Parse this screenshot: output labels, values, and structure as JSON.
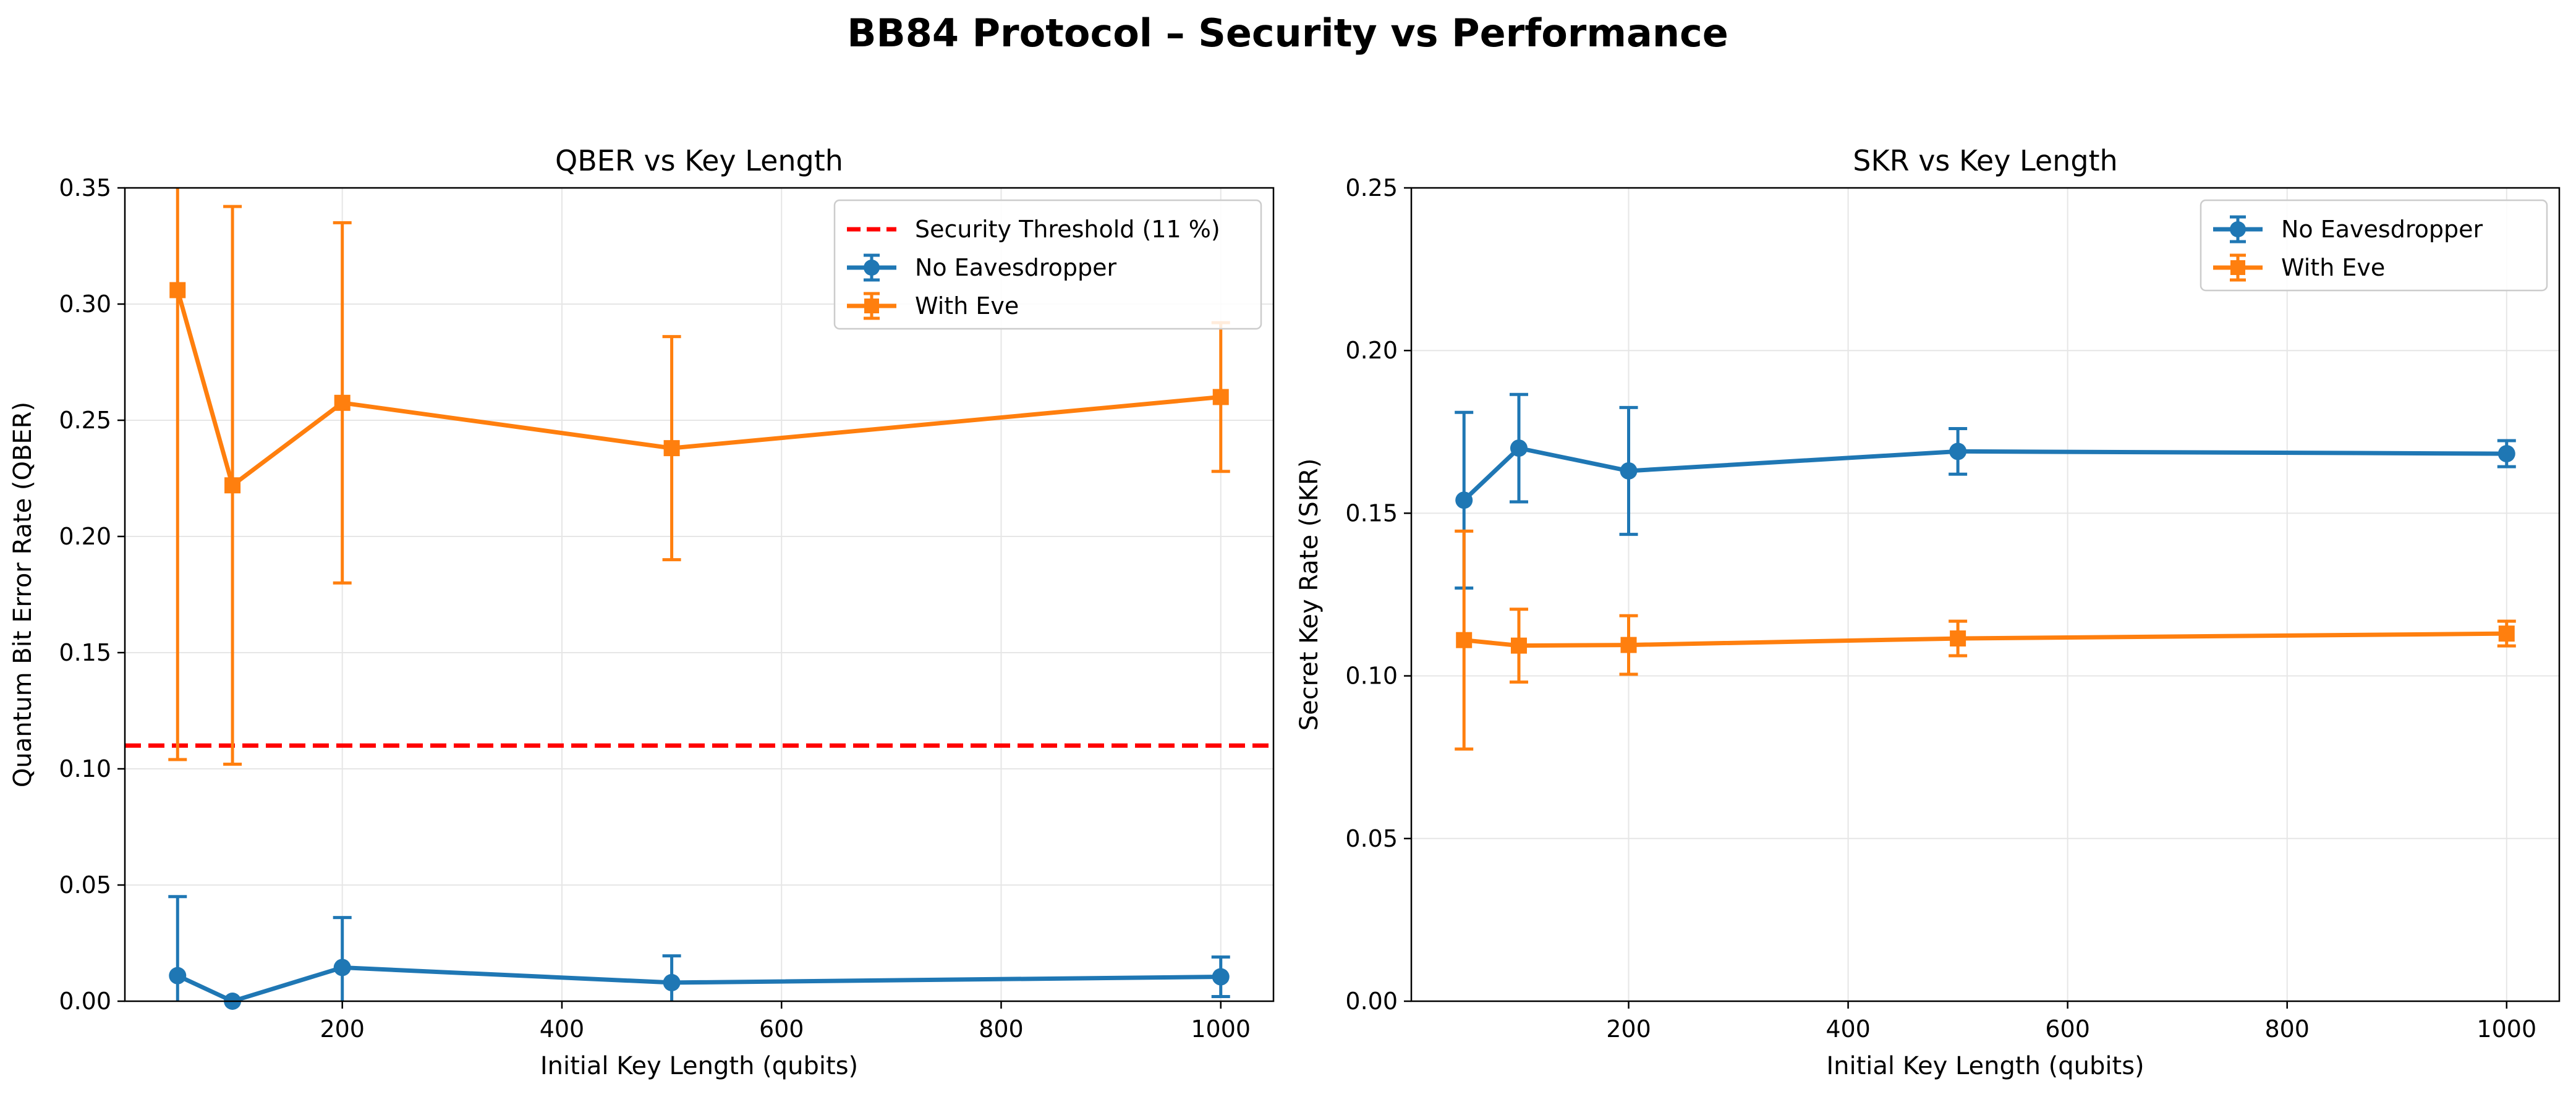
{
  "figure_title": "BB84 Protocol – Security vs Performance",
  "colors": {
    "no_eve": "#1f77b4",
    "eve": "#ff7f0e",
    "threshold": "#ff0000",
    "grid": "#e6e6e6"
  },
  "chart_data": [
    {
      "type": "line",
      "title": "QBER vs Key Length",
      "xlabel": "Initial Key Length (qubits)",
      "ylabel": "Quantum Bit Error Rate (QBER)",
      "xlim": [
        2,
        1048
      ],
      "ylim": [
        0,
        0.35
      ],
      "xticks": [
        200,
        400,
        600,
        800,
        1000
      ],
      "yticks": [
        0.0,
        0.05,
        0.1,
        0.15,
        0.2,
        0.25,
        0.3,
        0.35
      ],
      "ytick_labels": [
        "0.00",
        "0.05",
        "0.10",
        "0.15",
        "0.20",
        "0.25",
        "0.30",
        "0.35"
      ],
      "grid": true,
      "legend_position": "upper right",
      "reference_lines": [
        {
          "name": "Security Threshold (11 %)",
          "y": 0.11,
          "style": "dashed",
          "color": "#ff0000"
        }
      ],
      "x": [
        50,
        100,
        200,
        500,
        1000
      ],
      "series": [
        {
          "name": "No Eavesdropper",
          "marker": "circle",
          "color": "#1f77b4",
          "values": [
            0.011,
            0.0,
            0.0145,
            0.008,
            0.0105
          ],
          "errors": [
            0.034,
            0.0,
            0.0215,
            0.0115,
            0.0085
          ]
        },
        {
          "name": "With Eve",
          "marker": "square",
          "color": "#ff7f0e",
          "values": [
            0.306,
            0.222,
            0.2575,
            0.238,
            0.26
          ],
          "errors": [
            0.202,
            0.12,
            0.0775,
            0.048,
            0.032
          ]
        }
      ]
    },
    {
      "type": "line",
      "title": "SKR vs Key Length",
      "xlabel": "Initial Key Length (qubits)",
      "ylabel": "Secret Key Rate (SKR)",
      "xlim": [
        2,
        1048
      ],
      "ylim": [
        0,
        0.25
      ],
      "xticks": [
        200,
        400,
        600,
        800,
        1000
      ],
      "yticks": [
        0.0,
        0.05,
        0.1,
        0.15,
        0.2,
        0.25
      ],
      "ytick_labels": [
        "0.00",
        "0.05",
        "0.10",
        "0.15",
        "0.20",
        "0.25"
      ],
      "grid": true,
      "legend_position": "upper right",
      "reference_lines": [],
      "x": [
        50,
        100,
        200,
        500,
        1000
      ],
      "series": [
        {
          "name": "No Eavesdropper",
          "marker": "circle",
          "color": "#1f77b4",
          "values": [
            0.154,
            0.17,
            0.163,
            0.169,
            0.1683
          ],
          "errors": [
            0.027,
            0.0165,
            0.0195,
            0.007,
            0.004
          ]
        },
        {
          "name": "With Eve",
          "marker": "square",
          "color": "#ff7f0e",
          "values": [
            0.111,
            0.1093,
            0.1095,
            0.1115,
            0.113
          ],
          "errors": [
            0.0335,
            0.0112,
            0.009,
            0.0053,
            0.0038
          ]
        }
      ]
    }
  ]
}
